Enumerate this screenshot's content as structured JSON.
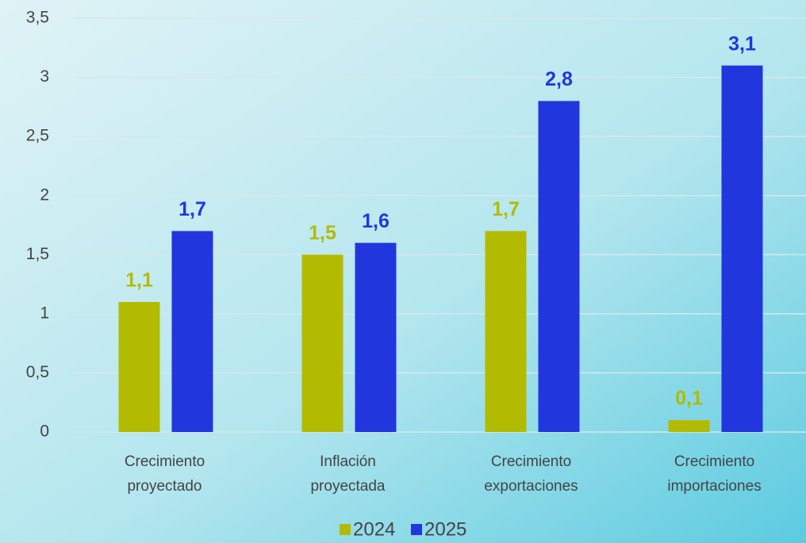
{
  "chart_data": {
    "type": "bar",
    "categories": [
      "Crecimiento proyectado",
      "Inflación proyectada",
      "Crecimiento exportaciones",
      "Crecimiento importaciones"
    ],
    "series": [
      {
        "name": "2024",
        "color": "#b3bb00",
        "values": [
          1.1,
          1.5,
          1.7,
          0.1
        ],
        "value_labels": [
          "1,1",
          "1,5",
          "1,7",
          "0,1"
        ]
      },
      {
        "name": "2025",
        "color": "#2236de",
        "values": [
          1.7,
          1.6,
          2.8,
          3.1
        ],
        "value_labels": [
          "1,7",
          "1,6",
          "2,8",
          "3,1"
        ]
      }
    ],
    "ylim": [
      0,
      3.5
    ],
    "yticks": [
      0,
      {
        "value": 0.5,
        "label": "0,5"
      },
      1,
      {
        "value": 1.5,
        "label": "1,5"
      },
      2,
      {
        "value": 2.5,
        "label": "2,5"
      },
      3,
      {
        "value": 3.5,
        "label": "3,5"
      }
    ],
    "grid": true,
    "legend": "bottom"
  }
}
